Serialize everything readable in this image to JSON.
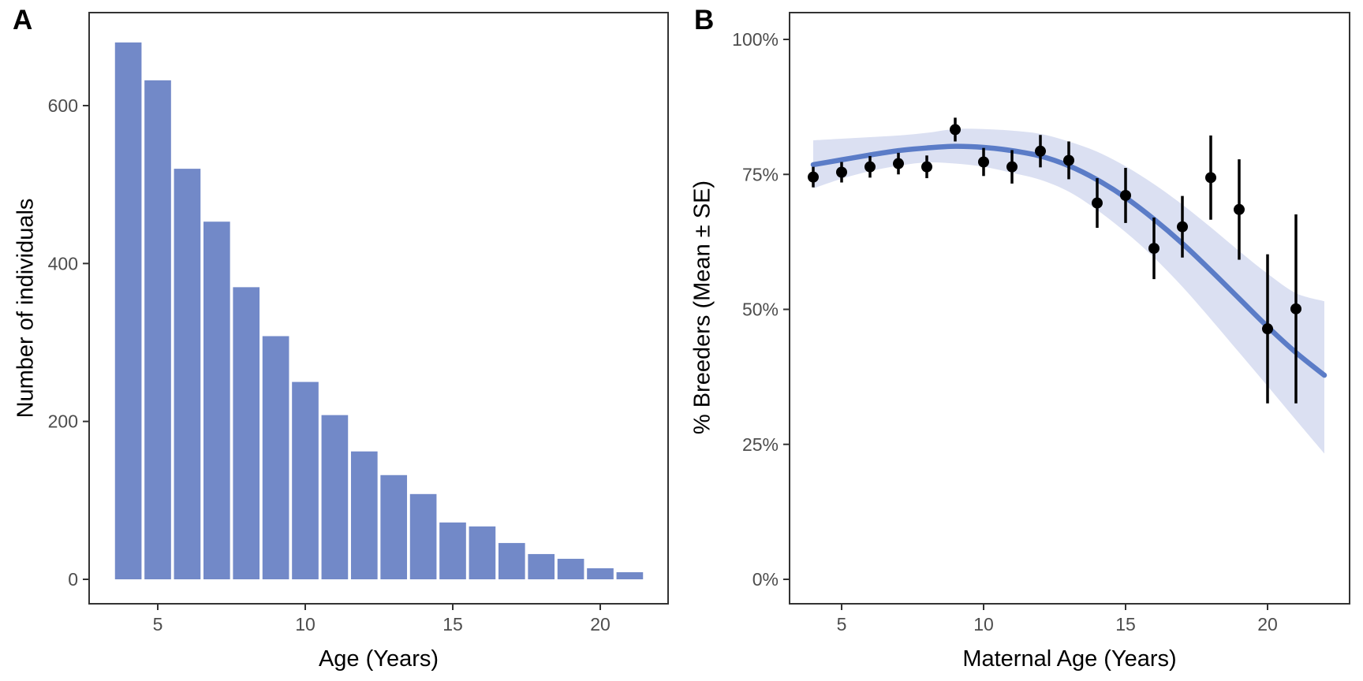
{
  "figure": {
    "panels": [
      {
        "label": "A"
      },
      {
        "label": "B"
      }
    ]
  },
  "chart_data": [
    {
      "type": "bar",
      "panel": "A",
      "title": "",
      "xlabel": "Age (Years)",
      "ylabel": "Number of individuals",
      "x_ticks": {
        "values": [
          5,
          10,
          15,
          20
        ],
        "labels": [
          "5",
          "10",
          "15",
          "20"
        ]
      },
      "y_ticks": {
        "values": [
          0,
          200,
          400,
          600
        ],
        "labels": [
          "0",
          "200",
          "400",
          "600"
        ]
      },
      "xlim": [
        2.7,
        22.3
      ],
      "ylim": [
        -30,
        712
      ],
      "grid": false,
      "bar_color": "#7289c8",
      "bar_width_years": 0.9,
      "categories": [
        4,
        5,
        6,
        7,
        8,
        9,
        10,
        11,
        12,
        13,
        14,
        15,
        16,
        17,
        18,
        19,
        20,
        21
      ],
      "values": [
        680,
        632,
        520,
        453,
        370,
        308,
        250,
        208,
        162,
        132,
        108,
        72,
        67,
        46,
        32,
        26,
        14,
        9
      ]
    },
    {
      "type": "scatter",
      "panel": "B",
      "title": "",
      "xlabel": "Maternal Age (Years)",
      "ylabel": "% Breeders (Mean ± SE)",
      "x_ticks": {
        "values": [
          5,
          10,
          15,
          20
        ],
        "labels": [
          "5",
          "10",
          "15",
          "20"
        ]
      },
      "y_ticks": {
        "values": [
          0,
          25,
          50,
          75,
          100
        ],
        "labels": [
          "0%",
          "25%",
          "50%",
          "75%",
          "100%"
        ]
      },
      "xlim": [
        3.2,
        22.9
      ],
      "ylim": [
        -4.5,
        105
      ],
      "grid": false,
      "point_color": "#000000",
      "errorbar_color": "#000000",
      "line_color": "#5b7cc7",
      "ribbon_color": "#dbe0f2",
      "points": [
        {
          "x": 4,
          "mean": 74.5,
          "se": 1.9
        },
        {
          "x": 5,
          "mean": 75.4,
          "se": 1.9
        },
        {
          "x": 6,
          "mean": 76.4,
          "se": 2.0
        },
        {
          "x": 7,
          "mean": 77.0,
          "se": 2.0
        },
        {
          "x": 8,
          "mean": 76.4,
          "se": 2.1
        },
        {
          "x": 9,
          "mean": 83.3,
          "se": 2.2
        },
        {
          "x": 10,
          "mean": 77.3,
          "se": 2.6
        },
        {
          "x": 11,
          "mean": 76.4,
          "se": 3.1
        },
        {
          "x": 12,
          "mean": 79.3,
          "se": 3.0
        },
        {
          "x": 13,
          "mean": 77.6,
          "se": 3.5
        },
        {
          "x": 14,
          "mean": 69.7,
          "se": 4.6
        },
        {
          "x": 15,
          "mean": 71.1,
          "se": 5.1
        },
        {
          "x": 16,
          "mean": 61.3,
          "se": 5.7
        },
        {
          "x": 17,
          "mean": 65.3,
          "se": 5.7
        },
        {
          "x": 18,
          "mean": 74.4,
          "se": 7.8
        },
        {
          "x": 19,
          "mean": 68.5,
          "se": 9.3
        },
        {
          "x": 20,
          "mean": 46.4,
          "se": 13.8
        },
        {
          "x": 21,
          "mean": 50.1,
          "se": 17.5
        }
      ],
      "fit_curve": [
        {
          "x": 4,
          "fit": 76.8,
          "lo": 72.4,
          "hi": 81.3
        },
        {
          "x": 5,
          "fit": 77.7,
          "lo": 74.2,
          "hi": 81.6
        },
        {
          "x": 6,
          "fit": 78.6,
          "lo": 75.6,
          "hi": 81.9
        },
        {
          "x": 7,
          "fit": 79.4,
          "lo": 76.6,
          "hi": 82.2
        },
        {
          "x": 8,
          "fit": 79.9,
          "lo": 77.2,
          "hi": 82.7
        },
        {
          "x": 9,
          "fit": 80.2,
          "lo": 77.0,
          "hi": 83.4
        },
        {
          "x": 10,
          "fit": 80.0,
          "lo": 76.4,
          "hi": 83.4
        },
        {
          "x": 11,
          "fit": 79.4,
          "lo": 75.3,
          "hi": 83.1
        },
        {
          "x": 12,
          "fit": 78.4,
          "lo": 74.0,
          "hi": 82.5
        },
        {
          "x": 13,
          "fit": 76.6,
          "lo": 71.8,
          "hi": 81.1
        },
        {
          "x": 14,
          "fit": 74.0,
          "lo": 68.4,
          "hi": 79.2
        },
        {
          "x": 15,
          "fit": 70.7,
          "lo": 64.3,
          "hi": 76.5
        },
        {
          "x": 16,
          "fit": 66.7,
          "lo": 59.6,
          "hi": 73.2
        },
        {
          "x": 17,
          "fit": 62.2,
          "lo": 54.2,
          "hi": 69.4
        },
        {
          "x": 18,
          "fit": 57.2,
          "lo": 48.2,
          "hi": 65.2
        },
        {
          "x": 19,
          "fit": 52.0,
          "lo": 42.0,
          "hi": 60.8
        },
        {
          "x": 20,
          "fit": 46.8,
          "lo": 35.8,
          "hi": 56.6
        },
        {
          "x": 21,
          "fit": 42.0,
          "lo": 29.5,
          "hi": 53.0
        },
        {
          "x": 22,
          "fit": 37.8,
          "lo": 23.3,
          "hi": 51.5
        }
      ]
    }
  ]
}
